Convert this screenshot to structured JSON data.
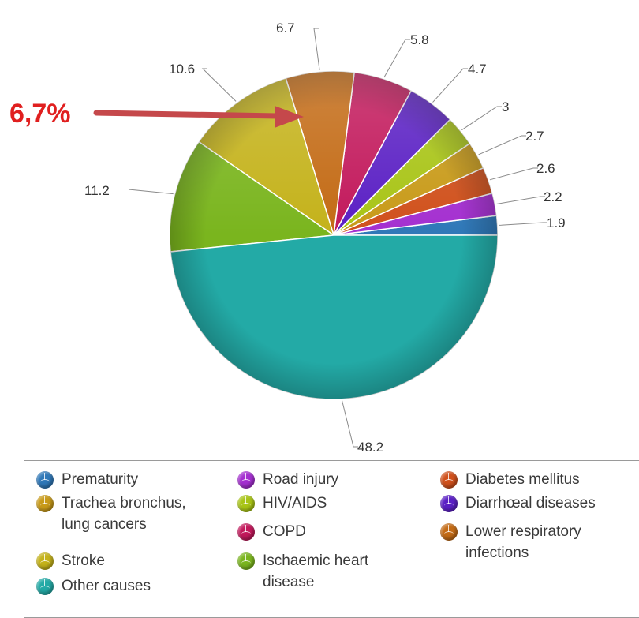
{
  "annotation": {
    "text": "6,7%",
    "color": "#e01f1f",
    "arrow_color": "#c5484b"
  },
  "chart_data": {
    "type": "pie",
    "title": "",
    "start": "3 o'clock, counter-clockwise",
    "slices": [
      {
        "label": "Prematurity",
        "value": 1.9,
        "color": "#2f78b8"
      },
      {
        "label": "Road injury",
        "value": 2.2,
        "color": "#a42fd0"
      },
      {
        "label": "Diabetes mellitus",
        "value": 2.6,
        "color": "#d0501b"
      },
      {
        "label": "Trachea bronchus, lung cancers",
        "value": 2.7,
        "color": "#c89a18"
      },
      {
        "label": "HIV/AIDS",
        "value": 3,
        "color": "#a8c415"
      },
      {
        "label": "Diarrhœal diseases",
        "value": 4.7,
        "color": "#5a1fc4"
      },
      {
        "label": "COPD",
        "value": 5.8,
        "color": "#c2185b"
      },
      {
        "label": "Lower respiratory infections",
        "value": 6.7,
        "color": "#c36a14"
      },
      {
        "label": "Stroke",
        "value": 10.6,
        "color": "#c4b21a"
      },
      {
        "label": "Ischaemic heart disease",
        "value": 11.2,
        "color": "#7ab51e"
      },
      {
        "label": "Other causes",
        "value": 48.2,
        "color": "#23aaa6"
      }
    ],
    "data_labels": [
      "1.9",
      "2.2",
      "2.6",
      "2.7",
      "3",
      "4.7",
      "5.8",
      "6.7",
      "10.6",
      "11.2",
      "48.2"
    ],
    "legend": {
      "placement": "bottom",
      "items": [
        {
          "label": "Prematurity",
          "color": "#2f78b8"
        },
        {
          "label": "Road injury",
          "color": "#a42fd0"
        },
        {
          "label": "Diabetes mellitus",
          "color": "#d0501b"
        },
        {
          "label": "Trachea bronchus,\nlung cancers",
          "color": "#c89a18"
        },
        {
          "label": "HIV/AIDS",
          "color": "#a8c415"
        },
        {
          "label": "Diarrhœal diseases",
          "color": "#5a1fc4"
        },
        {
          "label": "COPD",
          "color": "#c2185b"
        },
        {
          "label": "Lower respiratory\ninfections",
          "color": "#c36a14"
        },
        {
          "label": "Stroke",
          "color": "#c4b21a"
        },
        {
          "label": "Ischaemic heart\ndisease",
          "color": "#7ab51e"
        },
        {
          "label": "Other causes",
          "color": "#23aaa6"
        }
      ]
    }
  }
}
